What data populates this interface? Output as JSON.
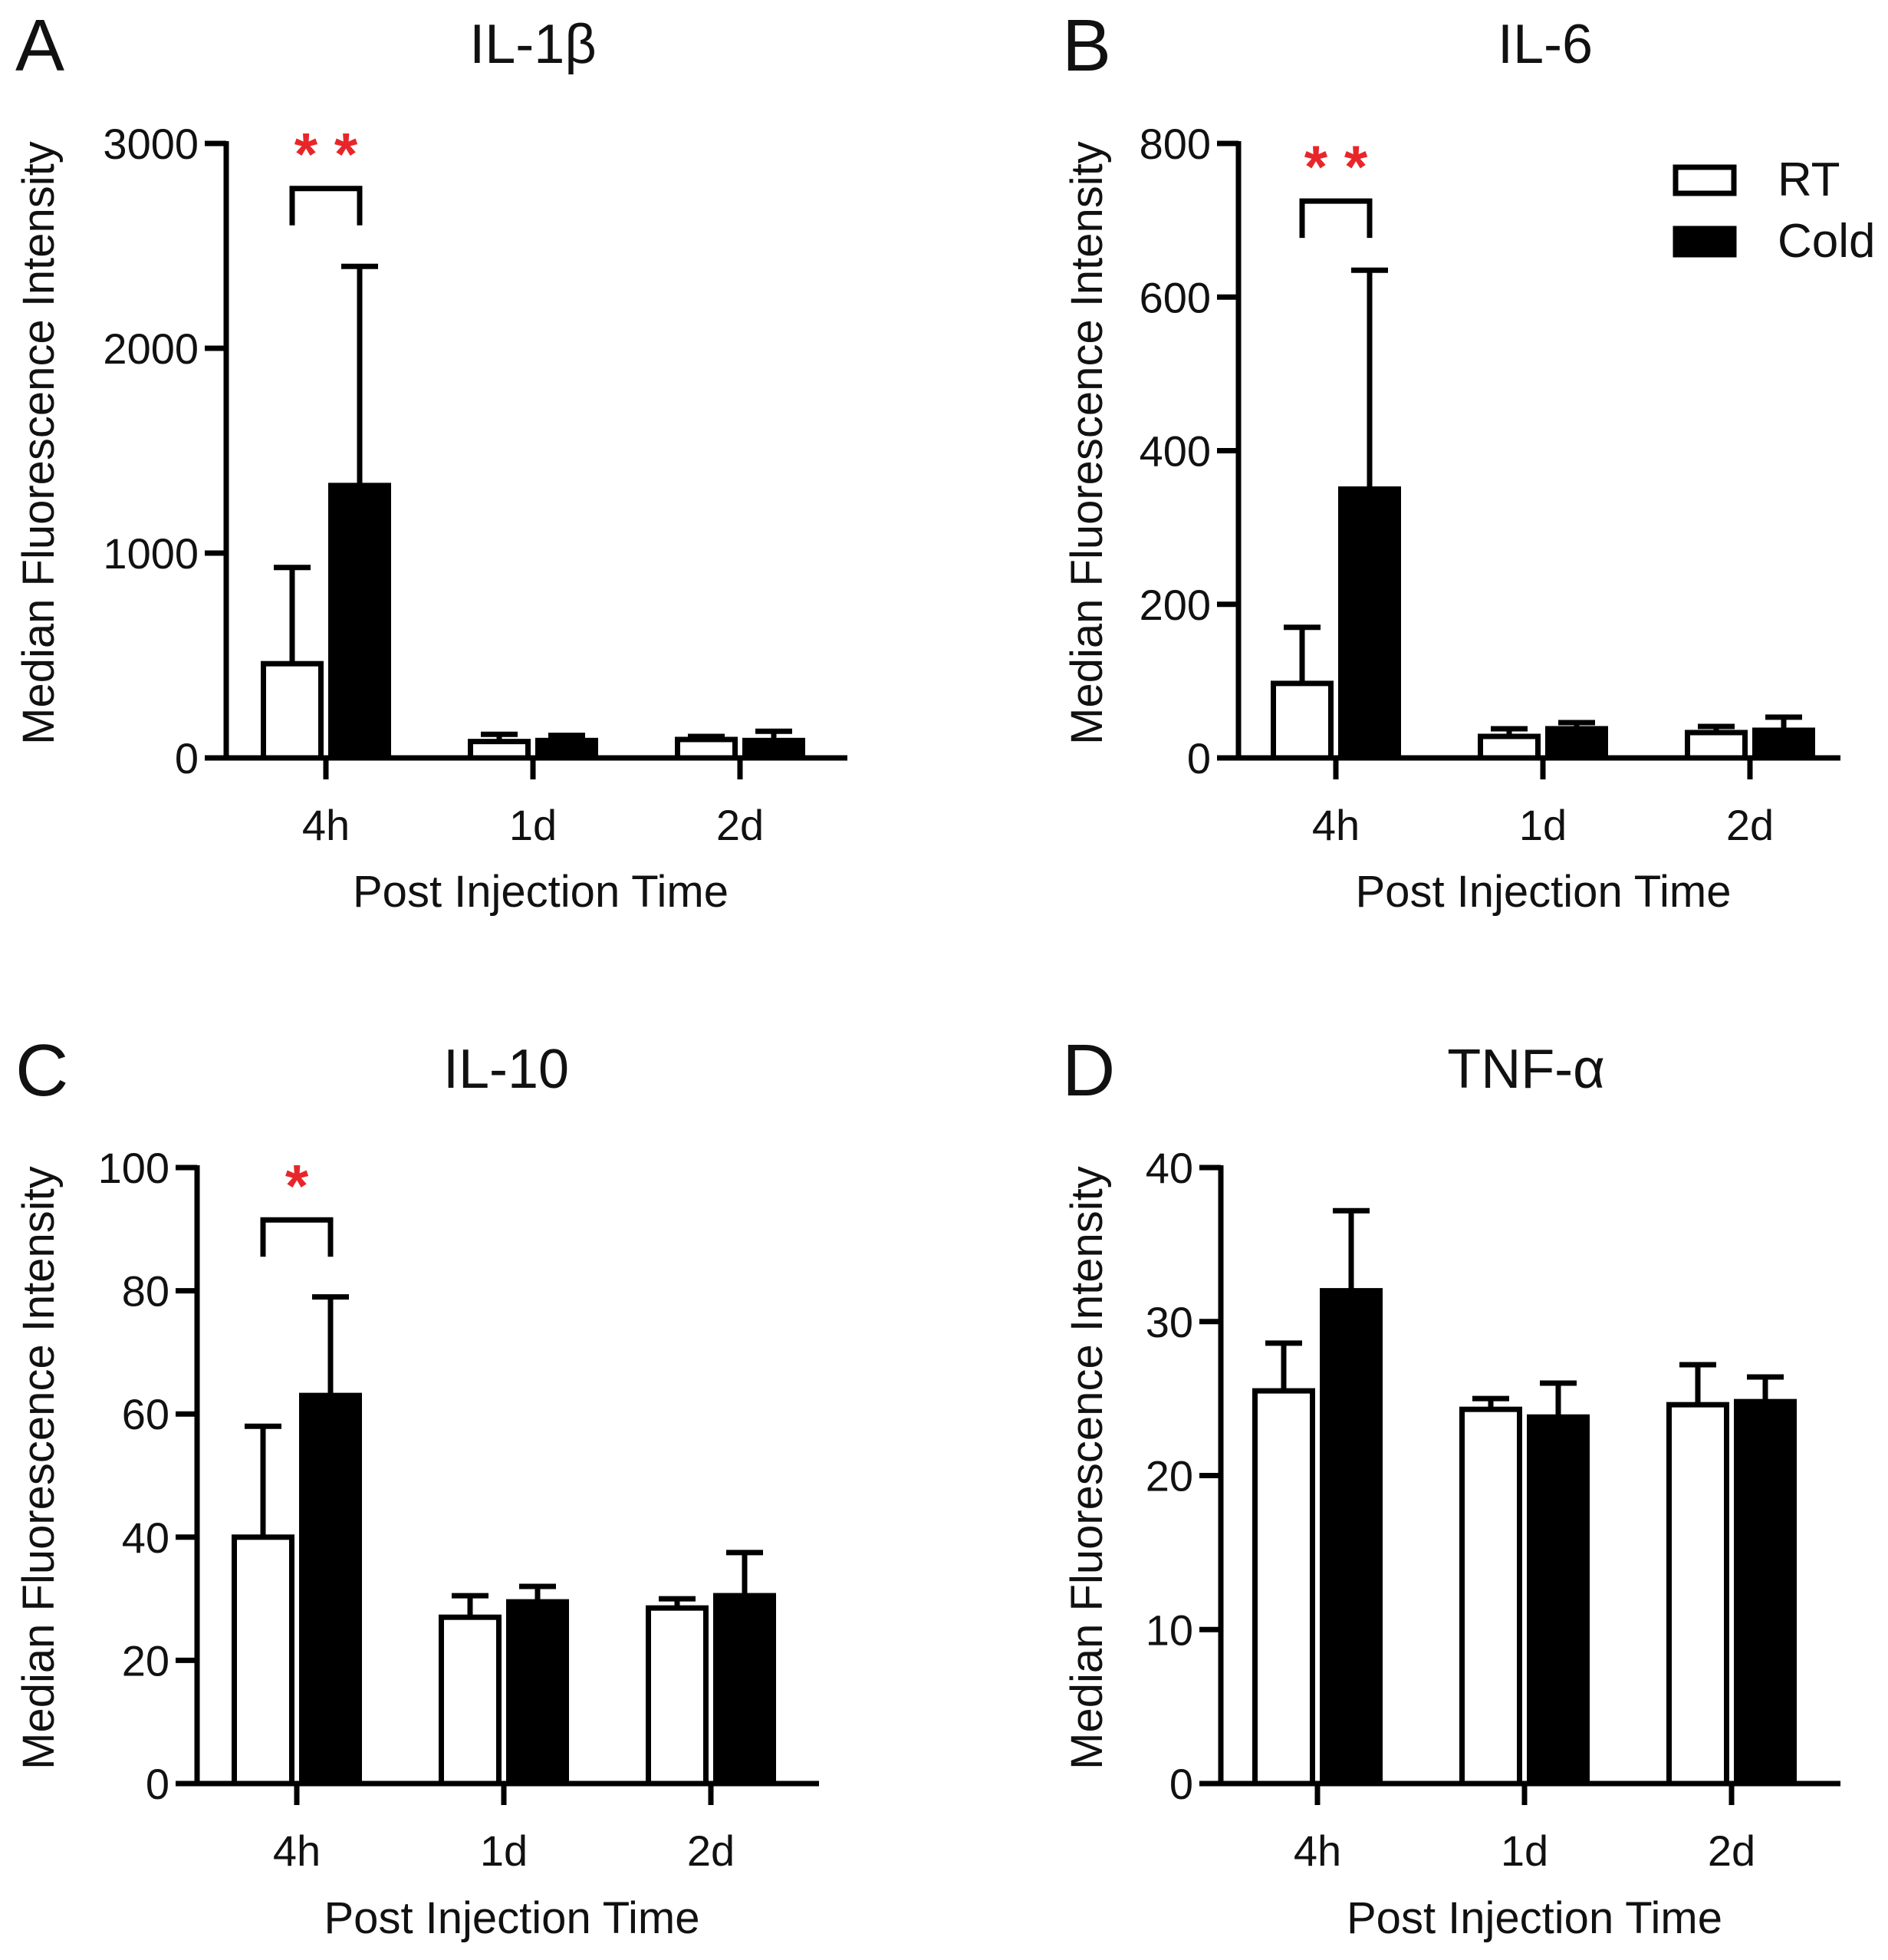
{
  "chart_data": [
    {
      "type": "bar",
      "panel_letter": "A",
      "title": "IL-1β",
      "xlabel": "Post Injection Time",
      "ylabel": "Median Fluorescence Intensity",
      "categories": [
        "4h",
        "1d",
        "2d"
      ],
      "ylim": [
        0,
        3000
      ],
      "yticks": [
        0,
        1000,
        2000,
        3000
      ],
      "yticklabels": [
        "0",
        "1000",
        "2000",
        "3000"
      ],
      "series": [
        {
          "name": "RT",
          "values": [
            460,
            80,
            90
          ],
          "errors": [
            470,
            35,
            15
          ]
        },
        {
          "name": "Cold",
          "values": [
            1330,
            85,
            85
          ],
          "errors": [
            1070,
            25,
            45
          ]
        }
      ],
      "significance": [
        {
          "category_index": 0,
          "label": "* *",
          "bracket_at": 2780
        }
      ]
    },
    {
      "type": "bar",
      "panel_letter": "B",
      "title": "IL-6",
      "xlabel": "Post Injection Time",
      "ylabel": "Median Fluorescence Intensity",
      "categories": [
        "4h",
        "1d",
        "2d"
      ],
      "ylim": [
        0,
        800
      ],
      "yticks": [
        0,
        200,
        400,
        600,
        800
      ],
      "yticklabels": [
        "0",
        "200",
        "400",
        "600",
        "800"
      ],
      "series": [
        {
          "name": "RT",
          "values": [
            97,
            28,
            33
          ],
          "errors": [
            73,
            10,
            8
          ]
        },
        {
          "name": "Cold",
          "values": [
            350,
            38,
            36
          ],
          "errors": [
            285,
            8,
            17
          ]
        }
      ],
      "significance": [
        {
          "category_index": 0,
          "label": "* *",
          "bracket_at": 725
        }
      ],
      "legend": [
        {
          "label": "RT",
          "style": "open"
        },
        {
          "label": "Cold",
          "style": "filled"
        }
      ]
    },
    {
      "type": "bar",
      "panel_letter": "C",
      "title": "IL-10",
      "xlabel": "Post Injection Time",
      "ylabel": "Median Fluorescence Intensity",
      "categories": [
        "4h",
        "1d",
        "2d"
      ],
      "ylim": [
        0,
        100
      ],
      "yticks": [
        0,
        20,
        40,
        60,
        80,
        100
      ],
      "yticklabels": [
        "0",
        "20",
        "40",
        "60",
        "80",
        "100"
      ],
      "series": [
        {
          "name": "RT",
          "values": [
            40,
            27,
            28.5
          ],
          "errors": [
            18,
            3.5,
            1.5
          ]
        },
        {
          "name": "Cold",
          "values": [
            63,
            29.5,
            30.5
          ],
          "errors": [
            16,
            2.5,
            7
          ]
        }
      ],
      "significance": [
        {
          "category_index": 0,
          "label": "*",
          "bracket_at": 91.5
        }
      ]
    },
    {
      "type": "bar",
      "panel_letter": "D",
      "title": "TNF-α",
      "xlabel": "Post Injection Time",
      "ylabel": "Median Fluorescence Intensity",
      "categories": [
        "4h",
        "1d",
        "2d"
      ],
      "ylim": [
        0,
        40
      ],
      "yticks": [
        0,
        10,
        20,
        30,
        40
      ],
      "yticklabels": [
        "0",
        "10",
        "20",
        "30",
        "40"
      ],
      "series": [
        {
          "name": "RT",
          "values": [
            25.5,
            24.3,
            24.6
          ],
          "errors": [
            3.1,
            0.7,
            2.6
          ]
        },
        {
          "name": "Cold",
          "values": [
            32,
            23.8,
            24.8
          ],
          "errors": [
            5.2,
            2.2,
            1.6
          ]
        }
      ],
      "significance": []
    }
  ]
}
